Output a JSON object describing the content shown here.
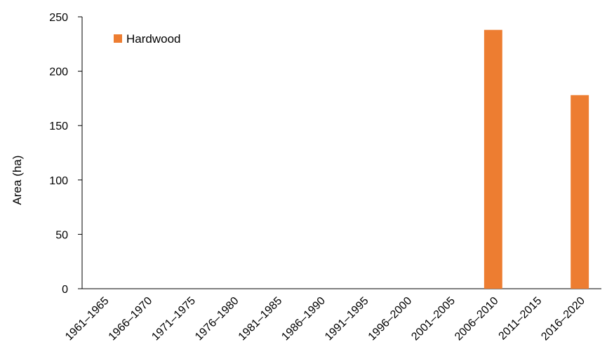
{
  "chart_data": {
    "type": "bar",
    "categories": [
      "1961–1965",
      "1966–1970",
      "1971–1975",
      "1976–1980",
      "1981–1985",
      "1986–1990",
      "1991–1995",
      "1996–2000",
      "2001–2005",
      "2006–2010",
      "2011–2015",
      "2016–2020"
    ],
    "series": [
      {
        "name": "Hardwood",
        "color": "#ED7D31",
        "values": [
          0,
          0,
          0,
          0,
          0,
          0,
          0,
          0,
          0,
          238,
          0,
          178
        ]
      }
    ],
    "title": "",
    "xlabel": "",
    "ylabel": "Area (ha)",
    "ylim": [
      0,
      250
    ],
    "yticks": [
      0,
      50,
      100,
      150,
      200,
      250
    ],
    "grid": false,
    "legend_position": "top-left"
  }
}
